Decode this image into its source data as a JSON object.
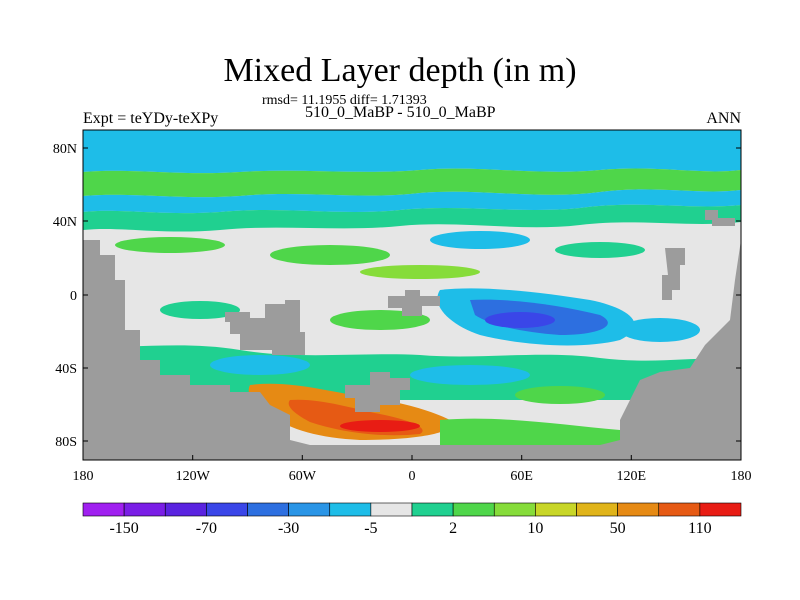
{
  "title": "Mixed Layer depth (in m)",
  "stats": "rmsd= 11.1955 diff= 1.71393",
  "subtitle": "510_0_MaBP - 510_0_MaBP",
  "left_label": "Expt = teYDy-teXPy",
  "right_label": "ANN",
  "lat_ticks": [
    "80N",
    "40N",
    "0",
    "40S",
    "80S"
  ],
  "lon_ticks": [
    "180",
    "120W",
    "60W",
    "0",
    "60E",
    "120E",
    "180"
  ],
  "colorbar": {
    "labels": [
      "-150",
      "-70",
      "-30",
      "-5",
      "2",
      "10",
      "50",
      "110"
    ],
    "colors": [
      "#a020f0",
      "#7a1ee6",
      "#5a23e0",
      "#3a46e8",
      "#2d6fe0",
      "#2a95e6",
      "#1ebde8",
      "#e6e6e6",
      "#20d090",
      "#4fd64a",
      "#86dc3a",
      "#c8d628",
      "#e0b41a",
      "#e68a14",
      "#e65a14",
      "#e81c14"
    ]
  },
  "colors": {
    "land": "#9c9c9c",
    "near_zero": "#e6e6e6",
    "shallow_negative": "#1ebde8",
    "positive": "#4fd64a",
    "deep_negative": "#2d6fe0",
    "strong_positive": "#e65a14"
  }
}
